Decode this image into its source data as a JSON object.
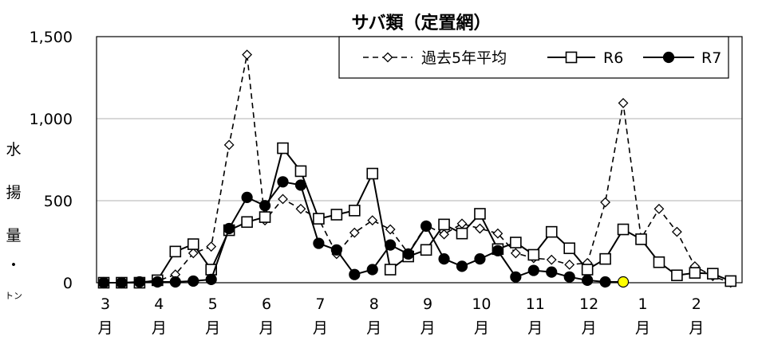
{
  "chart_data": {
    "type": "line",
    "title": "サバ類（定置網）",
    "ylabel_chars": [
      "水",
      "揚",
      "量",
      "・"
    ],
    "yunit": "トン",
    "ylim": [
      0,
      1500
    ],
    "yticks": [
      0,
      500,
      1000,
      1500
    ],
    "ytick_labels": [
      "0",
      "500",
      "1,000",
      "1,500"
    ],
    "grid": true,
    "legend_position": "top-right",
    "x_month_labels": [
      "3",
      "4",
      "5",
      "6",
      "7",
      "8",
      "9",
      "10",
      "11",
      "12",
      "1",
      "2"
    ],
    "x_month_suffix": "月",
    "x_periods_per_month": 3,
    "series": [
      {
        "name": "過去5年平均",
        "style": "dashed-diamond",
        "values": [
          0,
          0,
          5,
          10,
          50,
          180,
          220,
          840,
          1390,
          380,
          510,
          450,
          390,
          175,
          305,
          380,
          325,
          180,
          350,
          295,
          360,
          330,
          300,
          180,
          150,
          140,
          110,
          120,
          490,
          1095,
          270,
          450,
          310,
          100,
          40,
          0
        ]
      },
      {
        "name": "R6",
        "style": "solid-square",
        "values": [
          0,
          0,
          0,
          15,
          190,
          235,
          80,
          320,
          370,
          400,
          820,
          680,
          390,
          415,
          440,
          665,
          80,
          160,
          200,
          355,
          300,
          420,
          205,
          245,
          170,
          310,
          210,
          80,
          145,
          325,
          265,
          125,
          45,
          60,
          55,
          10
        ]
      },
      {
        "name": "R7",
        "style": "solid-circle",
        "values": [
          0,
          0,
          5,
          5,
          5,
          10,
          20,
          330,
          520,
          470,
          615,
          595,
          240,
          200,
          50,
          80,
          230,
          175,
          345,
          145,
          100,
          145,
          195,
          35,
          75,
          65,
          35,
          15,
          5,
          5
        ],
        "highlight_last": true,
        "highlight_color": "#ffff00"
      }
    ]
  }
}
